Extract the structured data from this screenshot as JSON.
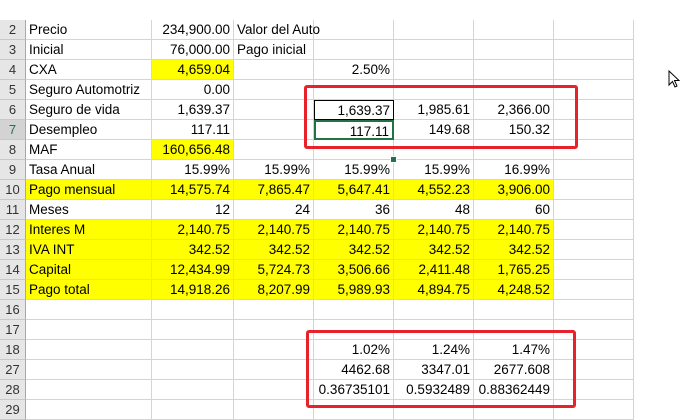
{
  "rows": [
    {
      "n": "2",
      "cells": [
        "Precio",
        "234,900.00",
        "Valor del Auto",
        "",
        "",
        "",
        ""
      ]
    },
    {
      "n": "3",
      "cells": [
        "Inicial",
        "76,000.00",
        "Pago inicial",
        "",
        "",
        "",
        ""
      ]
    },
    {
      "n": "4",
      "cells": [
        "CXA",
        "4,659.04",
        "",
        "2.50%",
        "",
        "",
        ""
      ]
    },
    {
      "n": "5",
      "cells": [
        "Seguro Automotriz",
        "0.00",
        "",
        "",
        "",
        "",
        ""
      ]
    },
    {
      "n": "6",
      "cells": [
        "Seguro de vida",
        "1,639.37",
        "",
        "1,639.37",
        "1,985.61",
        "2,366.00",
        ""
      ]
    },
    {
      "n": "7",
      "cells": [
        "Desempleo",
        "117.11",
        "",
        "117.11",
        "149.68",
        "150.32",
        ""
      ]
    },
    {
      "n": "8",
      "cells": [
        "MAF",
        "160,656.48",
        "",
        "",
        "",
        "",
        ""
      ]
    },
    {
      "n": "9",
      "cells": [
        "Tasa Anual",
        "15.99%",
        "15.99%",
        "15.99%",
        "15.99%",
        "16.99%",
        ""
      ]
    },
    {
      "n": "10",
      "cells": [
        "Pago mensual",
        "14,575.74",
        "7,865.47",
        "5,647.41",
        "4,552.23",
        "3,906.00",
        ""
      ]
    },
    {
      "n": "11",
      "cells": [
        "Meses",
        "12",
        "24",
        "36",
        "48",
        "60",
        ""
      ]
    },
    {
      "n": "12",
      "cells": [
        "Interes M",
        "2,140.75",
        "2,140.75",
        "2,140.75",
        "2,140.75",
        "2,140.75",
        ""
      ]
    },
    {
      "n": "13",
      "cells": [
        "IVA INT",
        "342.52",
        "342.52",
        "342.52",
        "342.52",
        "342.52",
        ""
      ]
    },
    {
      "n": "14",
      "cells": [
        "Capital",
        "12,434.99",
        "5,724.73",
        "3,506.66",
        "2,411.48",
        "1,765.25",
        ""
      ]
    },
    {
      "n": "15",
      "cells": [
        "Pago total",
        "14,918.26",
        "8,207.99",
        "5,989.93",
        "4,894.75",
        "4,248.52",
        ""
      ]
    },
    {
      "n": "16",
      "cells": [
        "",
        "",
        "",
        "",
        "",
        "",
        ""
      ]
    },
    {
      "n": "17",
      "cells": [
        "",
        "",
        "",
        "",
        "",
        "",
        ""
      ]
    },
    {
      "n": "18",
      "cells": [
        "",
        "",
        "",
        "1.02%",
        "1.24%",
        "1.47%",
        ""
      ]
    },
    {
      "n": "27",
      "cells": [
        "",
        "",
        "",
        "4462.68",
        "3347.01",
        "2677.608",
        ""
      ]
    },
    {
      "n": "28",
      "cells": [
        "",
        "",
        "",
        "0.36735101",
        "0.5932489",
        "0.88362449",
        ""
      ]
    },
    {
      "n": "29",
      "cells": [
        "",
        "",
        "",
        "",
        "",
        "",
        ""
      ]
    }
  ],
  "colors": {
    "highlight": "#ffff00",
    "annotation": "#e8222a",
    "selection": "#217346"
  },
  "icons": {
    "cursor": "mouse-pointer-icon"
  }
}
